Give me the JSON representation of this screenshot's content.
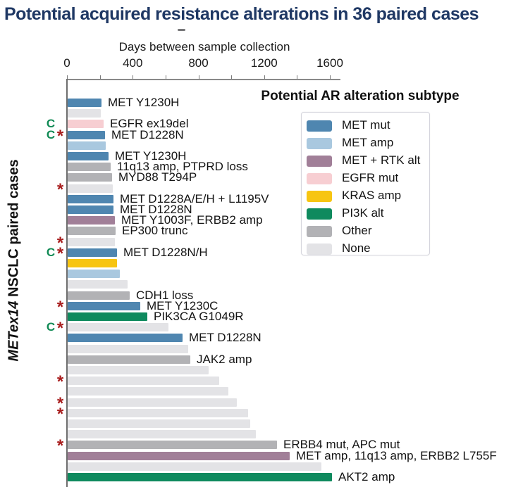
{
  "title": "Potential acquired resistance alterations in 36 paired cases",
  "title_dash": "-",
  "chart_data": {
    "type": "bar",
    "orientation": "horizontal",
    "title": "Potential acquired resistance alterations in 36 paired cases",
    "xlabel": "Days between sample collection",
    "ylabel": "METex14 NSCLC paired cases",
    "ylabel_italic_part": "METex14",
    "ylabel_regular_part": " NSCLC paired cases",
    "xlim": [
      0,
      1600
    ],
    "xticks": [
      0,
      400,
      800,
      1200,
      1600
    ],
    "minor_tick_step": 200,
    "grid": false,
    "legend_title": "Potential AR alteration subtype",
    "legend_position": "upper-right",
    "legend": [
      {
        "name": "MET mut",
        "color": "#4f86b0"
      },
      {
        "name": "MET amp",
        "color": "#a9c8df"
      },
      {
        "name": "MET + RTK alt",
        "color": "#a17f98"
      },
      {
        "name": "EGFR mut",
        "color": "#f7ced2"
      },
      {
        "name": "KRAS amp",
        "color": "#f7c512"
      },
      {
        "name": "PI3K alt",
        "color": "#0f8a5e"
      },
      {
        "name": "Other",
        "color": "#b2b2b5"
      },
      {
        "name": "None",
        "color": "#e3e3e6"
      }
    ],
    "flag_glyphs": {
      "clinical": "C",
      "significant": "*"
    },
    "flag_colors": {
      "clinical": "#118a55",
      "significant": "#a81d1d"
    },
    "rows": [
      {
        "label": "MET Y1230H",
        "subtype": "MET mut",
        "days": 206,
        "flags": []
      },
      {
        "label": "",
        "subtype": "None",
        "days": 200,
        "flags": []
      },
      {
        "label": "EGFR ex19del",
        "subtype": "EGFR mut",
        "days": 220,
        "flags": [
          "C"
        ]
      },
      {
        "label": "MET D1228N",
        "subtype": "MET mut",
        "days": 227,
        "flags": [
          "C",
          "*"
        ]
      },
      {
        "label": "",
        "subtype": "MET amp",
        "days": 233,
        "flags": []
      },
      {
        "label": "MET Y1230H",
        "subtype": "MET mut",
        "days": 250,
        "flags": []
      },
      {
        "label": "11q13 amp, PTPRD loss",
        "subtype": "Other",
        "days": 263,
        "flags": []
      },
      {
        "label": "MYD88 T294P",
        "subtype": "Other",
        "days": 270,
        "flags": []
      },
      {
        "label": "",
        "subtype": "None",
        "days": 275,
        "flags": [
          "*"
        ]
      },
      {
        "label": "MET D1228A/E/H + L1195V",
        "subtype": "MET mut",
        "days": 280,
        "flags": []
      },
      {
        "label": "MET D1228N",
        "subtype": "MET mut",
        "days": 280,
        "flags": []
      },
      {
        "label": "MET Y1003F, ERBB2 amp",
        "subtype": "MET + RTK alt",
        "days": 288,
        "flags": []
      },
      {
        "label": "EP300 trunc",
        "subtype": "Other",
        "days": 293,
        "flags": []
      },
      {
        "label": "",
        "subtype": "None",
        "days": 288,
        "flags": [
          "*"
        ]
      },
      {
        "label": "MET D1228N/H",
        "subtype": "MET mut",
        "days": 300,
        "flags": [
          "C",
          "*"
        ]
      },
      {
        "label": "",
        "subtype": "KRAS amp",
        "days": 300,
        "flags": []
      },
      {
        "label": "",
        "subtype": "MET amp",
        "days": 317,
        "flags": []
      },
      {
        "label": "",
        "subtype": "None",
        "days": 365,
        "flags": []
      },
      {
        "label": "CDH1 loss",
        "subtype": "Other",
        "days": 377,
        "flags": []
      },
      {
        "label": "MET Y1230C",
        "subtype": "MET mut",
        "days": 442,
        "flags": [
          "*"
        ]
      },
      {
        "label": "PIK3CA G1049R",
        "subtype": "PI3K alt",
        "days": 485,
        "flags": []
      },
      {
        "label": "",
        "subtype": "None",
        "days": 615,
        "flags": [
          "C",
          "*"
        ]
      },
      {
        "label": "MET D1228N",
        "subtype": "MET mut",
        "days": 700,
        "flags": []
      },
      {
        "label": "",
        "subtype": "None",
        "days": 733,
        "flags": []
      },
      {
        "label": "JAK2 amp",
        "subtype": "Other",
        "days": 748,
        "flags": []
      },
      {
        "label": "",
        "subtype": "None",
        "days": 858,
        "flags": []
      },
      {
        "label": "",
        "subtype": "None",
        "days": 922,
        "flags": [
          "*"
        ]
      },
      {
        "label": "",
        "subtype": "None",
        "days": 978,
        "flags": []
      },
      {
        "label": "",
        "subtype": "None",
        "days": 1030,
        "flags": [
          "*"
        ]
      },
      {
        "label": "",
        "subtype": "None",
        "days": 1100,
        "flags": [
          "*"
        ]
      },
      {
        "label": "",
        "subtype": "None",
        "days": 1110,
        "flags": []
      },
      {
        "label": "",
        "subtype": "None",
        "days": 1145,
        "flags": []
      },
      {
        "label": "ERBB4 mut, APC mut",
        "subtype": "Other",
        "days": 1274,
        "flags": [
          "*"
        ]
      },
      {
        "label": "MET amp, 11q13 amp, ERBB2 L755F",
        "subtype": "MET + RTK alt",
        "days": 1351,
        "flags": []
      },
      {
        "label": "",
        "subtype": "None",
        "days": 1544,
        "flags": []
      },
      {
        "label": "AKT2 amp",
        "subtype": "PI3K alt",
        "days": 1609,
        "flags": []
      }
    ]
  },
  "layout_colors": {
    "title": "#1f3864",
    "axis_line": "#8a8a8a",
    "text": "#141414"
  }
}
